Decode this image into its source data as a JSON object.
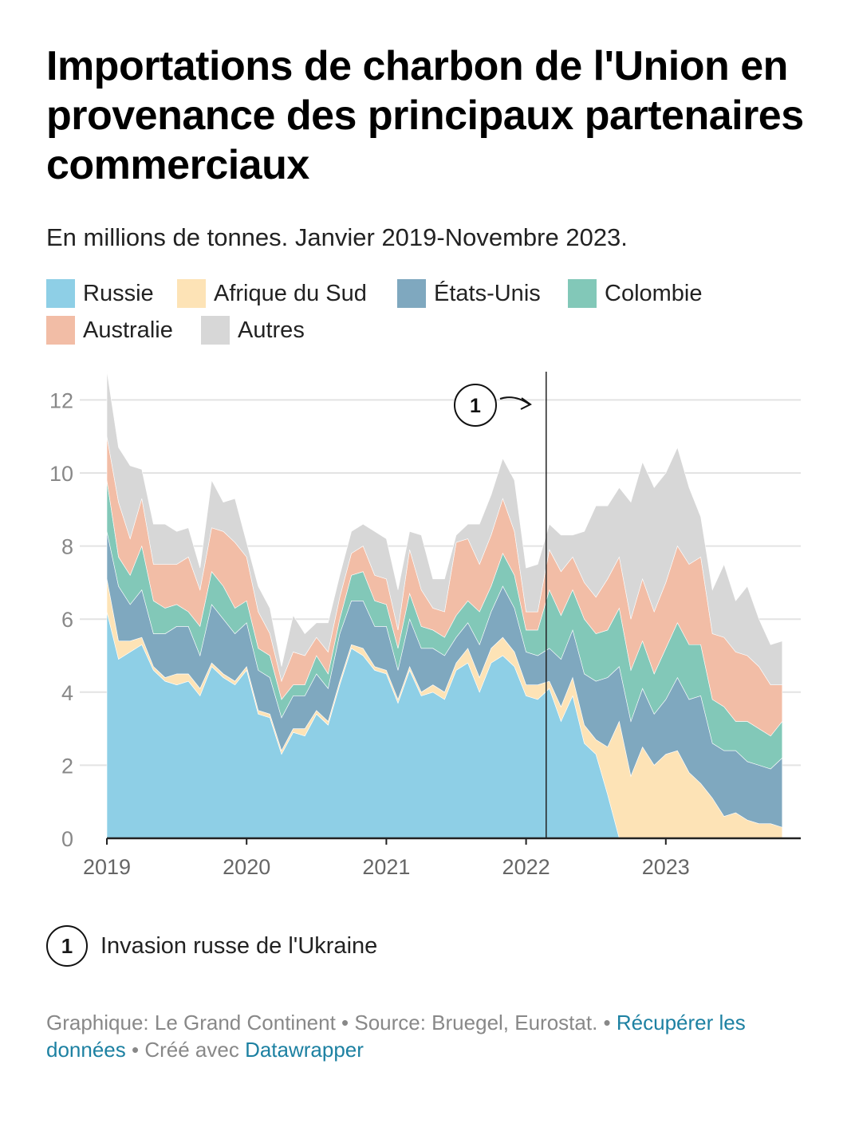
{
  "title": "Importations de charbon de l'Union en provenance des principaux partenaires commerciaux",
  "subtitle": "En millions de tonnes. Janvier 2019-Novembre 2023.",
  "legend": [
    {
      "label": "Russie",
      "color": "#8ecfe6"
    },
    {
      "label": "Afrique du Sud",
      "color": "#fde3b6"
    },
    {
      "label": "États-Unis",
      "color": "#7fa8bf"
    },
    {
      "label": "Colombie",
      "color": "#82c8b8"
    },
    {
      "label": "Australie",
      "color": "#f2bda6"
    },
    {
      "label": "Autres",
      "color": "#d7d7d7"
    }
  ],
  "annotation": {
    "number": "1",
    "text": "Invasion russe de l'Ukraine"
  },
  "footer": {
    "graphic": "Graphique: Le Grand Continent",
    "source": "Source: Bruegel, Eurostat.",
    "data_link": "Récupérer les données",
    "created": "Créé avec",
    "tool_link": "Datawrapper"
  },
  "chart_data": {
    "type": "area",
    "stacked": true,
    "x_start": "2019-01",
    "x_end": "2023-11",
    "x_ticks": [
      "2019",
      "2020",
      "2021",
      "2022",
      "2023"
    ],
    "y_ticks": [
      "0",
      "2",
      "4",
      "6",
      "8",
      "10",
      "12"
    ],
    "ylim": [
      0,
      13
    ],
    "grid": true,
    "vline": {
      "x": "2022-03",
      "label": "1"
    },
    "series": [
      {
        "name": "Russie",
        "color": "#8ecfe6",
        "values": [
          6.2,
          4.9,
          5.1,
          5.3,
          4.6,
          4.3,
          4.2,
          4.3,
          3.9,
          4.7,
          4.4,
          4.2,
          4.6,
          3.4,
          3.3,
          2.3,
          2.9,
          2.8,
          3.4,
          3.1,
          4.2,
          5.2,
          5.0,
          4.6,
          4.5,
          3.7,
          4.6,
          3.9,
          4.0,
          3.8,
          4.6,
          4.8,
          4.0,
          4.8,
          5.0,
          4.7,
          3.9,
          3.8,
          4.1,
          3.2,
          3.9,
          2.6,
          2.3,
          1.2,
          0.0,
          0.0,
          0.0,
          0.0,
          0.0,
          0.0,
          0.0,
          0.0,
          0.0,
          0.0,
          0.0,
          0.0,
          0.0,
          0.0,
          0.0
        ]
      },
      {
        "name": "Afrique du Sud",
        "color": "#fde3b6",
        "values": [
          0.9,
          0.5,
          0.3,
          0.2,
          0.1,
          0.1,
          0.3,
          0.2,
          0.2,
          0.1,
          0.1,
          0.1,
          0.1,
          0.1,
          0.1,
          0.1,
          0.1,
          0.2,
          0.1,
          0.1,
          0.1,
          0.1,
          0.2,
          0.1,
          0.1,
          0.1,
          0.1,
          0.1,
          0.2,
          0.2,
          0.2,
          0.4,
          0.4,
          0.4,
          0.5,
          0.4,
          0.3,
          0.4,
          0.2,
          0.4,
          0.5,
          0.5,
          0.4,
          1.3,
          3.2,
          1.7,
          2.5,
          2.0,
          2.3,
          2.4,
          1.8,
          1.5,
          1.1,
          0.6,
          0.7,
          0.5,
          0.4,
          0.4,
          0.3
        ]
      },
      {
        "name": "États-Unis",
        "color": "#7fa8bf",
        "values": [
          1.3,
          1.5,
          1.0,
          1.3,
          0.9,
          1.2,
          1.3,
          1.3,
          0.9,
          1.6,
          1.5,
          1.3,
          1.2,
          1.1,
          1.0,
          0.9,
          0.9,
          0.9,
          1.0,
          0.9,
          1.3,
          1.2,
          1.3,
          1.1,
          1.2,
          0.8,
          1.3,
          1.2,
          1.0,
          1.0,
          0.7,
          0.7,
          0.9,
          1.0,
          1.4,
          1.2,
          0.9,
          0.8,
          0.9,
          1.3,
          1.3,
          1.4,
          1.6,
          1.9,
          1.5,
          1.5,
          1.6,
          1.4,
          1.5,
          2.0,
          2.0,
          2.4,
          1.5,
          1.8,
          1.7,
          1.6,
          1.6,
          1.5,
          1.9
        ]
      },
      {
        "name": "Colombie",
        "color": "#82c8b8",
        "values": [
          1.4,
          0.8,
          0.8,
          1.2,
          0.9,
          0.7,
          0.6,
          0.4,
          0.8,
          0.9,
          0.9,
          0.7,
          0.6,
          0.6,
          0.6,
          0.5,
          0.3,
          0.3,
          0.5,
          0.4,
          0.4,
          0.7,
          0.8,
          0.7,
          0.6,
          0.6,
          0.7,
          0.6,
          0.5,
          0.5,
          0.6,
          0.6,
          0.9,
          0.7,
          0.9,
          0.9,
          0.6,
          0.7,
          1.6,
          1.2,
          1.1,
          1.5,
          1.3,
          1.3,
          1.6,
          1.4,
          1.3,
          1.1,
          1.4,
          1.5,
          1.5,
          1.4,
          1.2,
          1.2,
          0.8,
          1.1,
          1.0,
          0.9,
          1.0
        ]
      },
      {
        "name": "Australie",
        "color": "#f2bda6",
        "values": [
          1.2,
          1.5,
          1.0,
          1.3,
          1.0,
          1.2,
          1.1,
          1.5,
          1.0,
          1.2,
          1.5,
          1.8,
          1.2,
          1.0,
          0.6,
          0.5,
          0.9,
          0.8,
          0.5,
          0.6,
          0.6,
          0.6,
          0.7,
          0.7,
          0.7,
          0.5,
          1.2,
          1.0,
          0.6,
          0.7,
          2.0,
          1.7,
          1.3,
          1.4,
          1.5,
          1.2,
          0.5,
          0.5,
          1.1,
          1.2,
          0.9,
          1.0,
          1.0,
          1.4,
          1.4,
          1.4,
          1.7,
          1.7,
          1.8,
          2.1,
          2.2,
          2.4,
          1.8,
          1.9,
          1.9,
          1.8,
          1.7,
          1.4,
          1.0
        ]
      },
      {
        "name": "Autres",
        "color": "#d7d7d7",
        "values": [
          1.8,
          1.5,
          2.0,
          0.8,
          1.1,
          1.1,
          0.9,
          0.8,
          0.6,
          1.3,
          0.8,
          1.2,
          0.4,
          0.7,
          0.7,
          0.4,
          1.0,
          0.6,
          0.4,
          0.8,
          0.6,
          0.6,
          0.6,
          1.2,
          1.1,
          1.1,
          0.5,
          1.5,
          0.8,
          0.9,
          0.2,
          0.4,
          1.1,
          1.1,
          1.1,
          1.4,
          1.2,
          1.3,
          0.7,
          1.0,
          0.6,
          1.4,
          2.5,
          2.0,
          1.9,
          3.2,
          3.2,
          3.4,
          3.0,
          2.7,
          2.1,
          1.1,
          1.2,
          2.0,
          1.4,
          1.9,
          1.3,
          1.1,
          1.2
        ]
      }
    ]
  }
}
